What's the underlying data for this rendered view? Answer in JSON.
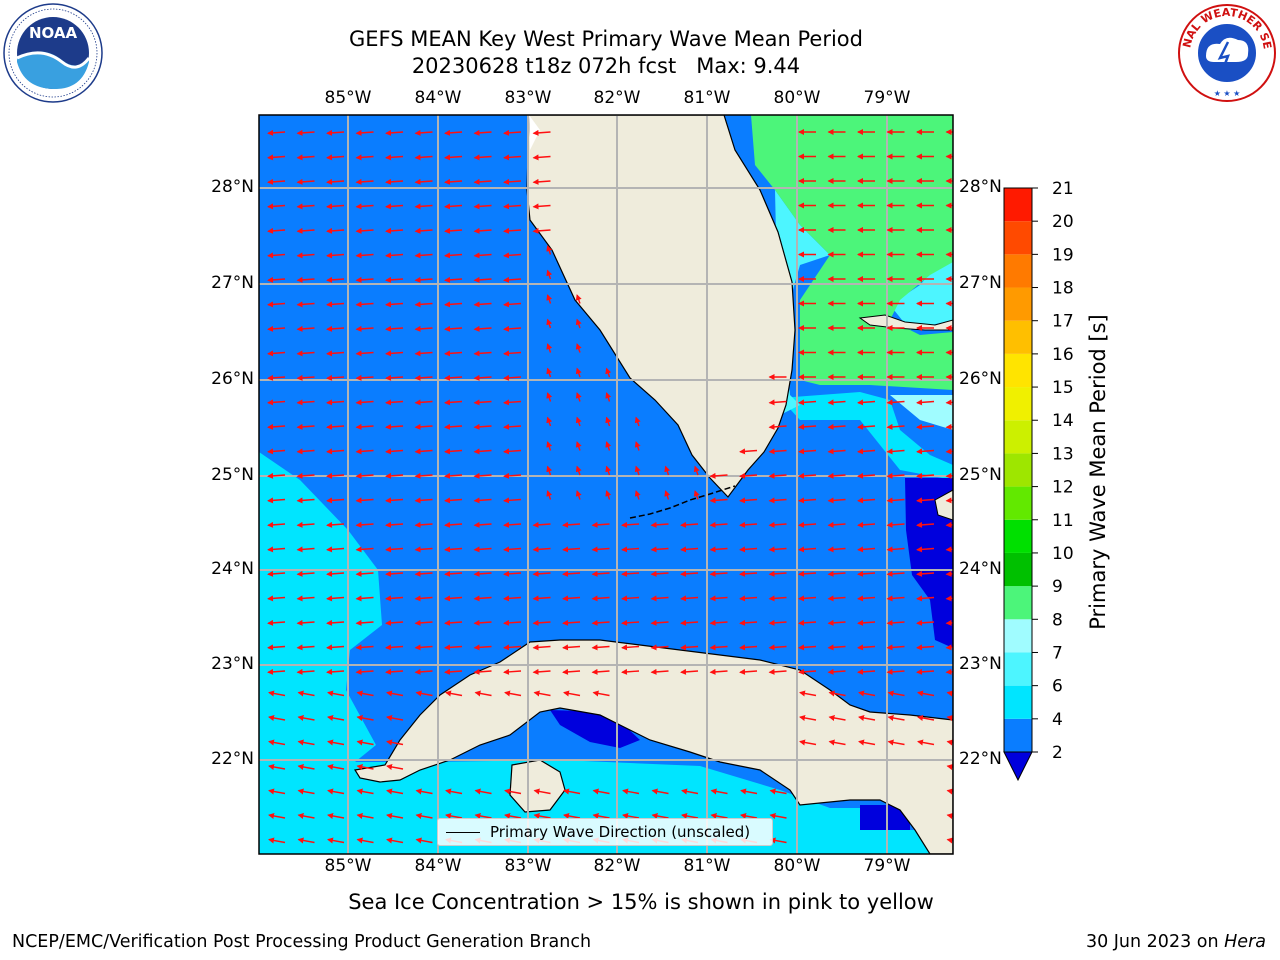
{
  "title": {
    "line1": "GEFS MEAN Key West Primary Wave Mean Period",
    "line2": "20230628 t18z 072h fcst   Max: 9.44"
  },
  "map": {
    "lon_labels_top": [
      "85°W",
      "84°W",
      "83°W",
      "82°W",
      "81°W",
      "80°W",
      "79°W"
    ],
    "lon_labels_bottom": [
      "85°W",
      "84°W",
      "83°W",
      "82°W",
      "81°W",
      "80°W",
      "79°W"
    ],
    "lat_labels_left": [
      "28°N",
      "27°N",
      "26°N",
      "25°N",
      "24°N",
      "23°N",
      "22°N"
    ],
    "lat_labels_right": [
      "28°N",
      "27°N",
      "26°N",
      "25°N",
      "24°N",
      "23°N",
      "22°N"
    ],
    "legend_label": "Primary Wave Direction (unscaled)"
  },
  "colorbar": {
    "title": "Primary Wave Mean Period [s]",
    "ticks": [
      "2",
      "4",
      "6",
      "7",
      "8",
      "9",
      "10",
      "11",
      "12",
      "13",
      "14",
      "15",
      "16",
      "17",
      "18",
      "19",
      "20",
      "21"
    ],
    "colors": [
      "#0a7dff",
      "#00e5ff",
      "#4df5ff",
      "#a0fcff",
      "#4cf57a",
      "#00c000",
      "#00e000",
      "#62e900",
      "#9ee600",
      "#ccf000",
      "#f0f000",
      "#ffe400",
      "#ffbf00",
      "#ff9a00",
      "#ff7a00",
      "#ff4a00",
      "#ff1a00"
    ],
    "extend_color": "#0000dd"
  },
  "footnote": "Sea Ice Concentration > 15% is shown in pink to yellow",
  "credit": "NCEP/EMC/Verification Post Processing Product Generation Branch",
  "date": {
    "text": "30 Jun 2023 on ",
    "machine": "Hera"
  },
  "logos": {
    "noaa_text": "NOAA",
    "nws_text": "NATIONAL WEATHER SERVICE"
  }
}
